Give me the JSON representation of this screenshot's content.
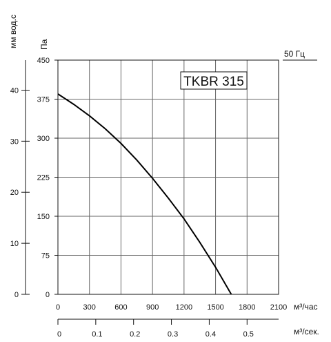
{
  "chart_data": {
    "type": "line",
    "title": "TKBR 315",
    "frequency_label": "50 Гц",
    "left_axis_label": "мм вод.с",
    "y_axis_label": "Па",
    "x_axis_label": "м³/час",
    "x2_axis_label": "м³/сек.",
    "xlim": [
      0,
      2100
    ],
    "ylim": [
      0,
      450
    ],
    "x_ticks": [
      "0",
      "300",
      "600",
      "900",
      "1200",
      "1500",
      "1800",
      "2100"
    ],
    "y_ticks": [
      "0",
      "75",
      "150",
      "225",
      "300",
      "375",
      "450"
    ],
    "mm_ticks": [
      "0",
      "10",
      "20",
      "30",
      "40"
    ],
    "x2_ticks": [
      "0",
      "0.1",
      "0.2",
      "0.3",
      "0.4",
      "0.5"
    ],
    "grid": true,
    "series": [
      {
        "x": [
          0,
          150,
          300,
          450,
          600,
          750,
          900,
          1050,
          1200,
          1350,
          1500,
          1650,
          1800
        ],
        "y": [
          385,
          365,
          343,
          318,
          290,
          258,
          223,
          185,
          145,
          100,
          52,
          0,
          0
        ]
      }
    ]
  }
}
